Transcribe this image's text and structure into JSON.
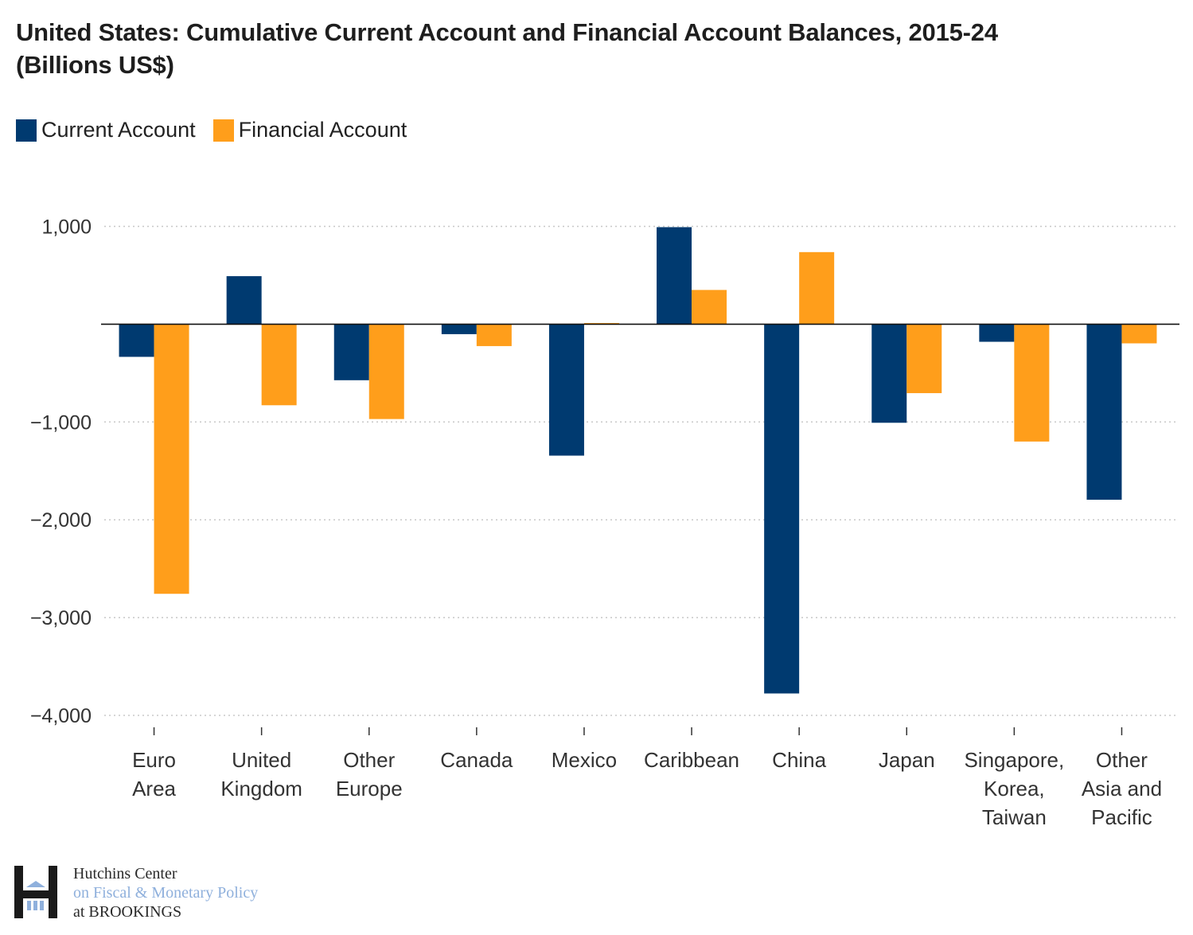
{
  "chart_data": {
    "type": "bar",
    "title": "United States: Cumulative Current Account and Financial Account Balances, 2015-24 (Billions US$)",
    "title_lines": [
      "United States: Cumulative Current Account and Financial Account Balances, 2015-24",
      "(Billions US$)"
    ],
    "xlabel": "",
    "ylabel": "",
    "ylim": [
      -4000,
      1000
    ],
    "yticks": [
      1000,
      -1000,
      -2000,
      -3000,
      -4000
    ],
    "ytick_labels": [
      "1,000",
      "−1,000",
      "−2,000",
      "−3,000",
      "−4,000"
    ],
    "grid": true,
    "legend_position": "top-left",
    "categories": [
      "Euro Area",
      "United Kingdom",
      "Other Europe",
      "Canada",
      "Mexico",
      "Caribbean",
      "China",
      "Japan",
      "Singapore, Korea, Taiwan",
      "Other Asia and Pacific"
    ],
    "category_label_lines": [
      [
        "Euro",
        "Area"
      ],
      [
        "United",
        "Kingdom"
      ],
      [
        "Other",
        "Europe"
      ],
      [
        "Canada"
      ],
      [
        "Mexico"
      ],
      [
        "Caribbean"
      ],
      [
        "China"
      ],
      [
        "Japan"
      ],
      [
        "Singapore,",
        "Korea,",
        "Taiwan"
      ],
      [
        "Other",
        "Asia and",
        "Pacific"
      ]
    ],
    "series": [
      {
        "name": "Current Account",
        "color": "#003a70",
        "values": [
          -334,
          491,
          -573,
          -102,
          -1344,
          992,
          -3776,
          -1008,
          -180,
          -1795
        ]
      },
      {
        "name": "Financial Account",
        "color": "#ff9e1b",
        "values": [
          -2757,
          -829,
          -970,
          -224,
          12,
          350,
          737,
          -705,
          -1200,
          -196
        ]
      }
    ]
  },
  "legend": [
    {
      "label": "Current Account",
      "color": "#003a70"
    },
    {
      "label": "Financial Account",
      "color": "#ff9e1b"
    }
  ],
  "footer": {
    "line1": "Hutchins Center",
    "line2": "on Fiscal & Monetary Policy",
    "line3": "at BROOKINGS"
  }
}
